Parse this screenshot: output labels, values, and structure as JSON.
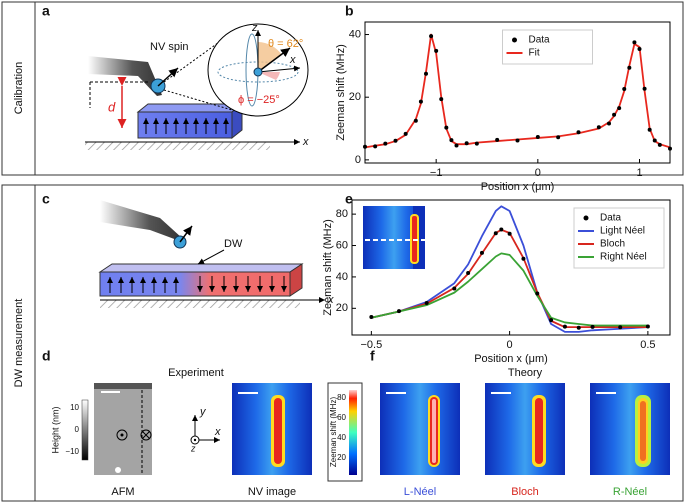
{
  "sections": [
    "Calibration",
    "DW measurement"
  ],
  "panel_labels": [
    "a",
    "b",
    "c",
    "d",
    "e",
    "f"
  ],
  "panel_a": {
    "nv_label": "NV spin",
    "theta": "θ = 62°",
    "phi": "ϕ = −25°",
    "axis_z": "z",
    "axis_x": "x",
    "distance": "d",
    "sample_axis": "x"
  },
  "panel_c": {
    "dw_label": "DW",
    "sample_axis": "x"
  },
  "panel_d": {
    "title": "Experiment",
    "colorbar_label": "Height (nm)",
    "colorbar_ticks": [
      "10",
      "0",
      "−10"
    ],
    "images": [
      "AFM",
      "NV image"
    ],
    "axes": [
      "x",
      "y",
      "z"
    ]
  },
  "panel_f": {
    "title": "Theory",
    "colorbar_label": "Zeeman shift (MHz)",
    "colorbar_ticks": [
      "80",
      "60",
      "40",
      "20"
    ],
    "images": [
      "L-Néel",
      "Bloch",
      "R-Néel"
    ]
  },
  "chart_data": [
    {
      "type": "line",
      "x_label": "Position x (μm)",
      "y_label": "Zeeman shift (MHz)",
      "x": [
        -1.7,
        -1.6,
        -1.5,
        -1.4,
        -1.3,
        -1.2,
        -1.15,
        -1.1,
        -1.05,
        -1.0,
        -0.95,
        -0.9,
        -0.85,
        -0.8,
        -0.7,
        -0.6,
        -0.4,
        -0.2,
        0,
        0.2,
        0.4,
        0.6,
        0.7,
        0.75,
        0.8,
        0.85,
        0.9,
        0.95,
        1.0,
        1.05,
        1.1,
        1.15,
        1.2,
        1.3
      ],
      "series": [
        {
          "name": "Data",
          "color": "#000000",
          "style": "markers",
          "values": [
            4.2,
            4.3,
            5.2,
            6.1,
            8.3,
            12.5,
            18.6,
            27.5,
            39.5,
            34.8,
            19.4,
            10.3,
            6.3,
            4.6,
            5.3,
            5.2,
            6.4,
            6.2,
            7.3,
            7.2,
            8.8,
            10.4,
            11.6,
            14.4,
            16.5,
            22.6,
            29.4,
            37.5,
            35.4,
            22.7,
            9.6,
            6.2,
            4.8,
            3.6
          ]
        },
        {
          "name": "Fit",
          "color": "#e8281e",
          "style": "line",
          "values": [
            4,
            4.5,
            5,
            6,
            8,
            13,
            18,
            28,
            40,
            34,
            20,
            10,
            6,
            5,
            5,
            5.5,
            6,
            6.5,
            7,
            7.5,
            8.5,
            10,
            12,
            14,
            17,
            22,
            30,
            37,
            36,
            22,
            10,
            6,
            5,
            4
          ]
        }
      ],
      "xlim": [
        -1.7,
        1.3
      ],
      "ylim": [
        -1,
        44
      ],
      "xticks": [
        {
          "value": -1,
          "label": "−1"
        },
        0,
        1
      ],
      "yticks": [
        0,
        20,
        40
      ],
      "legend": "upper center"
    },
    {
      "type": "line",
      "x_label": "Position x (μm)",
      "y_label": "Zeeman shift (MHz)",
      "x": [
        -0.5,
        -0.4,
        -0.3,
        -0.2,
        -0.15,
        -0.1,
        -0.05,
        -0.03,
        0,
        0.05,
        0.1,
        0.15,
        0.2,
        0.25,
        0.3,
        0.4,
        0.5
      ],
      "series": [
        {
          "name": "Data",
          "color": "#000000",
          "style": "markers",
          "values": [
            14.5,
            18.2,
            23.4,
            32.6,
            42.5,
            55.3,
            67.8,
            70.2,
            67.5,
            51.6,
            29.4,
            12.5,
            8.3,
            7.6,
            8.2,
            7.9,
            8.4
          ]
        },
        {
          "name": "Light Néel",
          "color": "#3b4fd8",
          "style": "line",
          "values": [
            14,
            18,
            24,
            36,
            48,
            66,
            82,
            85,
            82,
            60,
            30,
            10,
            5,
            5,
            6,
            7,
            8
          ]
        },
        {
          "name": "Bloch",
          "color": "#d7261e",
          "style": "line",
          "values": [
            14,
            18,
            23,
            33,
            42,
            55,
            68,
            70,
            68,
            52,
            30,
            12,
            8,
            8,
            8,
            8,
            8
          ]
        },
        {
          "name": "Right Néel",
          "color": "#3aa335",
          "style": "line",
          "values": [
            14,
            18,
            22,
            30,
            37,
            45,
            53,
            55,
            54,
            44,
            28,
            14,
            11,
            10,
            9,
            9,
            9
          ]
        }
      ],
      "xlim": [
        -0.57,
        0.58
      ],
      "ylim": [
        3,
        89
      ],
      "xticks": [
        {
          "value": -0.5,
          "label": "−0.5"
        },
        0,
        0.5
      ],
      "yticks": [
        20,
        40,
        60,
        80
      ],
      "legend": "upper right"
    }
  ]
}
